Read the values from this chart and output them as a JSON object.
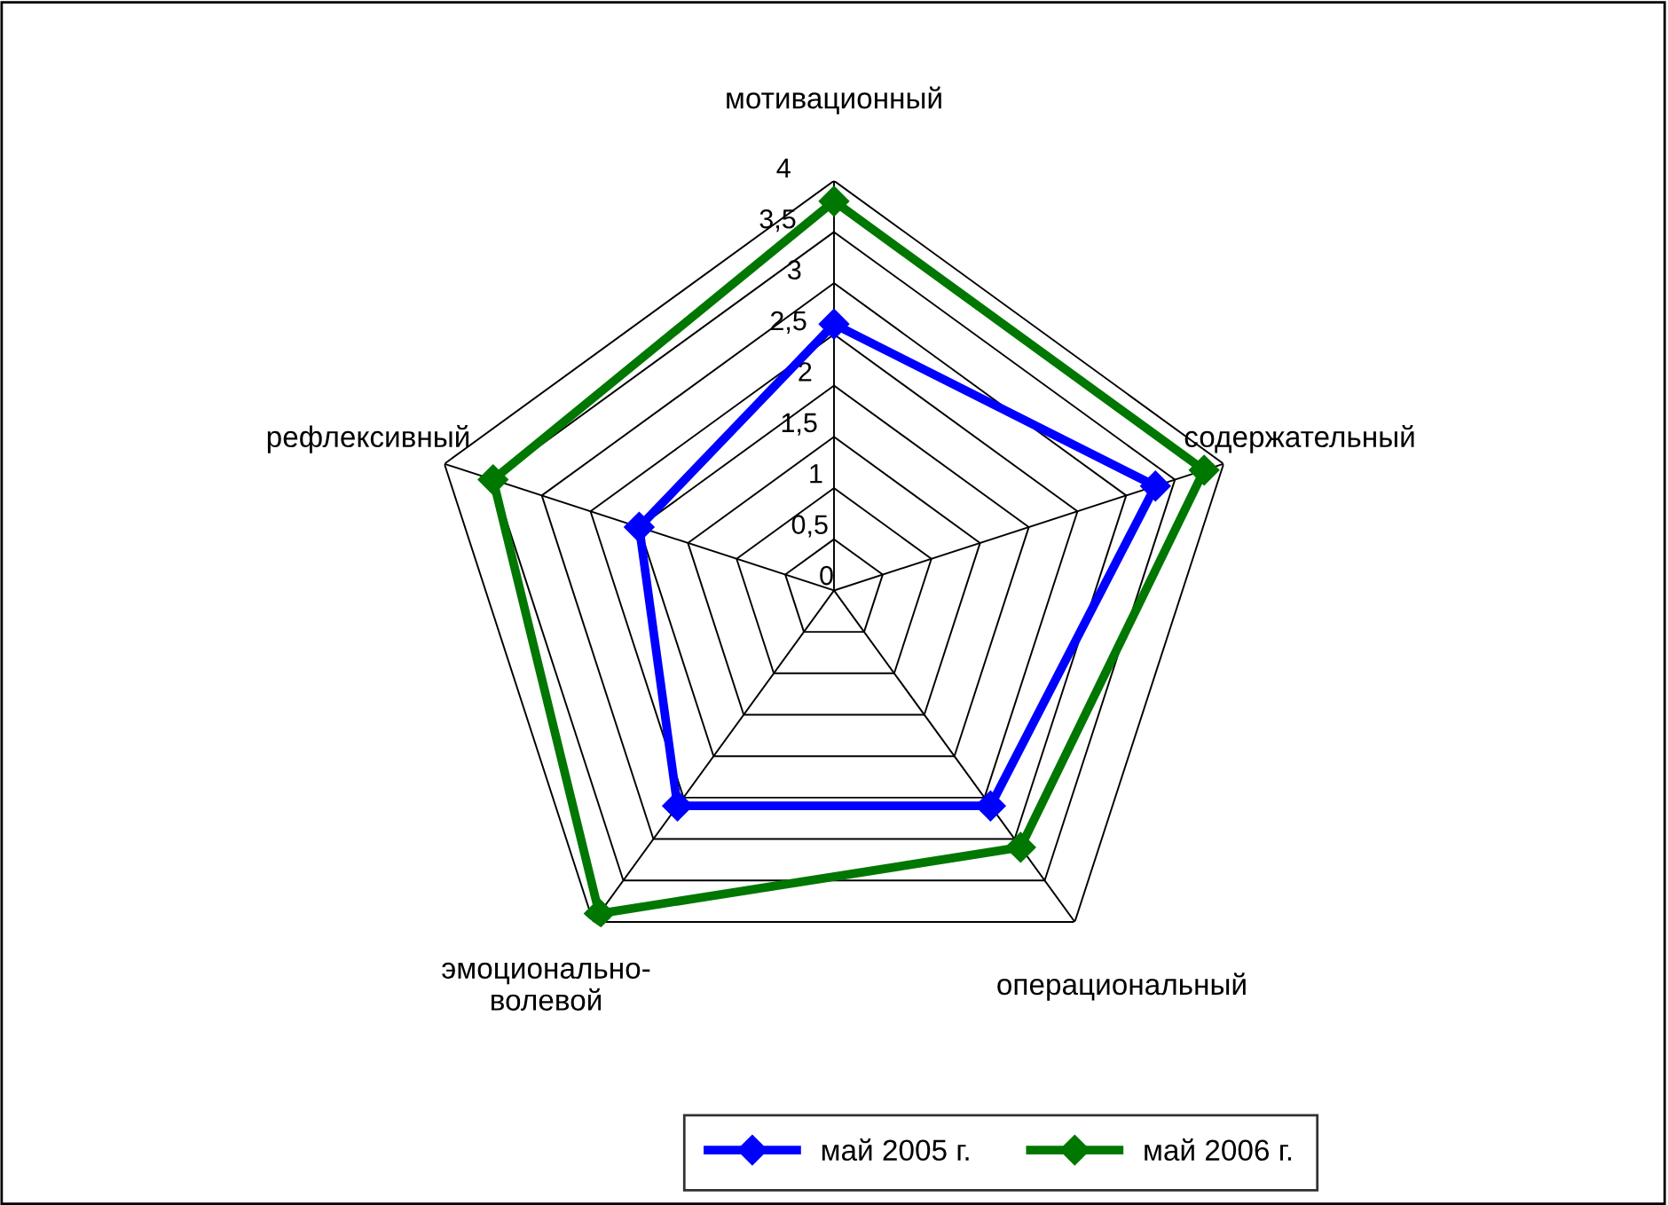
{
  "chart_data": {
    "type": "radar",
    "categories": [
      "мотивационный",
      "содержательный",
      "операциональный",
      "эмоционально-\nволевой",
      "рефлексивный"
    ],
    "series": [
      {
        "name": "май 2005 г.",
        "color": "#0000ff",
        "values": [
          2.6,
          3.3,
          2.6,
          2.6,
          2.0
        ]
      },
      {
        "name": "май 2006 г.",
        "color": "#007700",
        "values": [
          3.8,
          3.8,
          3.1,
          3.9,
          3.5
        ]
      }
    ],
    "ylim": [
      0,
      4
    ],
    "yticks": [
      0,
      {
        "value": 0.5,
        "label": "0,5"
      },
      1,
      {
        "value": 1.5,
        "label": "1,5"
      },
      2,
      {
        "value": 2.5,
        "label": "2,5"
      },
      3,
      {
        "value": 3.5,
        "label": "3,5"
      },
      4
    ],
    "marker": "diamond",
    "line_style": "solid",
    "grid": true,
    "legend": "bottom"
  }
}
